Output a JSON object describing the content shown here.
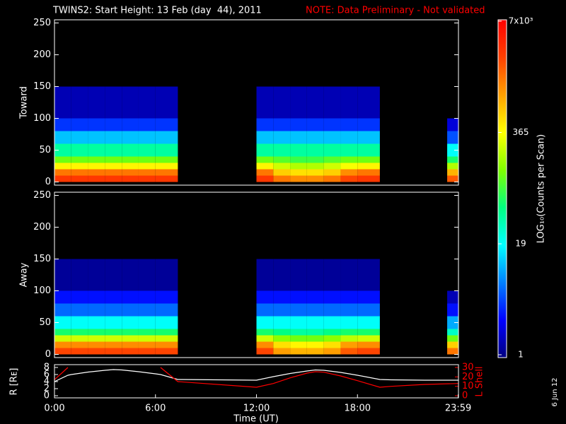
{
  "chart_data": [
    {
      "type": "heatmap",
      "title": "TWINS2: Start Height: 13 Feb (day  44), 2011",
      "note": "NOTE: Data Preliminary - Not validated",
      "ylabel": "Toward",
      "xlim": [
        0,
        24
      ],
      "ylim": [
        -5,
        255
      ],
      "yticks": [
        0,
        50,
        100,
        150,
        200,
        250
      ],
      "x_edges": [
        0,
        1,
        2,
        3,
        4,
        5,
        6,
        7.33,
        12,
        13,
        14,
        15,
        16,
        17,
        18,
        19.33,
        23.33,
        24
      ],
      "y_edges": [
        0,
        10,
        20,
        30,
        40,
        60,
        80,
        100,
        150,
        250
      ],
      "z": [
        [
          3000,
          3000,
          3000,
          3000,
          3000,
          3000,
          3000,
          null,
          3000,
          1500,
          1200,
          1200,
          1500,
          2500,
          3000,
          null,
          2000
        ],
        [
          1500,
          1500,
          1500,
          1500,
          1500,
          1500,
          1500,
          null,
          1500,
          600,
          500,
          500,
          600,
          1200,
          1500,
          null,
          800
        ],
        [
          400,
          400,
          400,
          400,
          400,
          400,
          400,
          null,
          400,
          250,
          200,
          200,
          250,
          350,
          400,
          null,
          200
        ],
        [
          120,
          120,
          120,
          120,
          120,
          120,
          120,
          null,
          120,
          100,
          80,
          80,
          100,
          120,
          120,
          null,
          60
        ],
        [
          40,
          40,
          40,
          40,
          40,
          40,
          40,
          null,
          40,
          40,
          40,
          40,
          40,
          40,
          40,
          null,
          20
        ],
        [
          12,
          12,
          12,
          12,
          12,
          12,
          12,
          null,
          12,
          12,
          12,
          12,
          12,
          12,
          12,
          null,
          5
        ],
        [
          4,
          4,
          4,
          4,
          4,
          4,
          4,
          null,
          4,
          4,
          4,
          4,
          4,
          4,
          4,
          null,
          2
        ],
        [
          1.5,
          1.5,
          1.5,
          1.5,
          1.5,
          1.5,
          1.5,
          null,
          1.5,
          1.5,
          1.5,
          1.5,
          1.5,
          1.5,
          1.5,
          null,
          null
        ],
        [
          null,
          null,
          null,
          null,
          null,
          null,
          null,
          null,
          null,
          null,
          null,
          null,
          null,
          null,
          null,
          null,
          null
        ]
      ],
      "colorbar": {
        "label": "LOG₁₀(Counts per Scan)",
        "log": true,
        "lim": [
          1,
          7000
        ],
        "ticks": [
          1,
          19,
          365,
          {
            "value": 7000,
            "label": "7x10³"
          }
        ],
        "colorscale": [
          "#000080",
          "#0000ff",
          "#0080ff",
          "#00ffff",
          "#00ff80",
          "#80ff00",
          "#ffff00",
          "#ffa000",
          "#ff4000",
          "#ff0000"
        ]
      }
    },
    {
      "type": "heatmap",
      "ylabel": "Away",
      "xlim": [
        0,
        24
      ],
      "ylim": [
        -5,
        255
      ],
      "yticks": [
        0,
        50,
        100,
        150,
        200,
        250
      ],
      "x_edges": [
        0,
        1,
        2,
        3,
        4,
        5,
        6,
        7.33,
        12,
        13,
        14,
        15,
        16,
        17,
        18,
        19.33,
        23.33,
        24
      ],
      "y_edges": [
        0,
        10,
        20,
        30,
        40,
        60,
        80,
        100,
        150,
        250
      ],
      "z": [
        [
          2500,
          2500,
          2500,
          2500,
          2500,
          2500,
          2500,
          null,
          2500,
          1000,
          800,
          800,
          1000,
          2000,
          2500,
          null,
          1500
        ],
        [
          1200,
          1200,
          1200,
          1200,
          1200,
          1200,
          1200,
          null,
          1200,
          500,
          400,
          400,
          500,
          1000,
          1200,
          null,
          600
        ],
        [
          250,
          250,
          250,
          250,
          250,
          250,
          250,
          null,
          250,
          150,
          120,
          120,
          150,
          220,
          250,
          null,
          120
        ],
        [
          60,
          60,
          60,
          60,
          60,
          60,
          60,
          null,
          60,
          50,
          40,
          40,
          50,
          60,
          60,
          null,
          30
        ],
        [
          20,
          20,
          20,
          20,
          20,
          20,
          20,
          null,
          20,
          20,
          20,
          20,
          20,
          20,
          20,
          null,
          10
        ],
        [
          6,
          6,
          6,
          6,
          6,
          6,
          6,
          null,
          6,
          6,
          6,
          6,
          6,
          6,
          6,
          null,
          3
        ],
        [
          3,
          3,
          3,
          3,
          3,
          3,
          3,
          null,
          3,
          3,
          3,
          3,
          3,
          3,
          3,
          null,
          1.5
        ],
        [
          1.2,
          1.2,
          1.2,
          1.2,
          1.2,
          1.2,
          1.2,
          null,
          1.2,
          1.2,
          1.2,
          1.2,
          1.2,
          1.2,
          1.2,
          null,
          null
        ],
        [
          null,
          null,
          null,
          null,
          null,
          null,
          null,
          null,
          null,
          null,
          null,
          null,
          null,
          null,
          null,
          null,
          null
        ]
      ]
    },
    {
      "type": "line",
      "xlabel": "Time (UT)",
      "ylabel": "R [Rᴇ]",
      "y2label": "L Shell",
      "annotations": [
        "6 Jun 12"
      ],
      "xlim": [
        0,
        24
      ],
      "xticks": [
        {
          "value": 0,
          "label": "0:00"
        },
        {
          "value": 6,
          "label": "6:00"
        },
        {
          "value": 12,
          "label": "12:00"
        },
        {
          "value": 18,
          "label": "18:00"
        },
        {
          "value": 23.983,
          "label": "23:59"
        }
      ],
      "ylim": [
        0,
        8
      ],
      "yticks": [
        0,
        2,
        4,
        6,
        8
      ],
      "y2lim": [
        0,
        30
      ],
      "y2ticks": [
        0,
        10,
        20,
        30
      ],
      "x": [
        0,
        0.8,
        1,
        2,
        3,
        3.5,
        4,
        5,
        6,
        6.3,
        7.33,
        12,
        13,
        14,
        15,
        15.5,
        16,
        17,
        18,
        19.33,
        20,
        22,
        24
      ],
      "series": [
        {
          "color": "#ffffff",
          "values": [
            4,
            5.8,
            6,
            6.7,
            7.2,
            7.4,
            7.3,
            6.8,
            6.2,
            6,
            4.6,
            4.4,
            5.4,
            6.3,
            7,
            7.3,
            7.2,
            6.6,
            5.8,
            4.6,
            4.5,
            4.4,
            4.4
          ]
        },
        {
          "color": "#ff0000",
          "axis": "y2",
          "values": [
            17,
            30,
            null,
            null,
            null,
            null,
            null,
            null,
            null,
            30,
            15,
            9,
            13,
            19,
            24,
            25.5,
            25,
            21,
            16,
            9,
            10,
            12,
            13
          ]
        }
      ]
    }
  ]
}
